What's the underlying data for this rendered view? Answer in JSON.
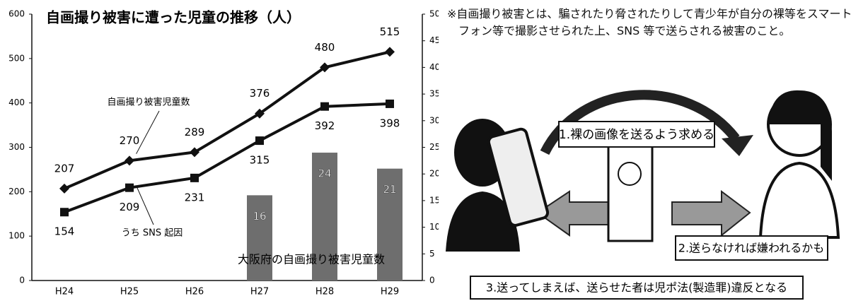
{
  "chart_data": {
    "type": "combo",
    "title": "自画撮り被害に遭った児童の推移（人）",
    "categories": [
      "H24",
      "H25",
      "H26",
      "H27",
      "H28",
      "H29"
    ],
    "series": [
      {
        "name": "自画撮り被害児童数",
        "type": "line",
        "marker": "diamond",
        "color": "#111111",
        "values": [
          207,
          270,
          289,
          376,
          480,
          515
        ]
      },
      {
        "name": "うち SNS 起因",
        "type": "line",
        "marker": "square",
        "color": "#111111",
        "values": [
          154,
          209,
          231,
          315,
          392,
          398
        ]
      },
      {
        "name": "大阪府の自画撮り被害児童数",
        "type": "bar",
        "axis": "y2",
        "color": "#6e6e6e",
        "values": [
          null,
          null,
          null,
          16,
          24,
          21
        ]
      }
    ],
    "ylim": [
      0,
      600
    ],
    "yticks": [
      0,
      100,
      200,
      300,
      400,
      500,
      600
    ],
    "y2lim": [
      0,
      50
    ],
    "y2ticks": [
      0,
      5,
      10,
      15,
      20,
      25,
      30,
      35,
      40,
      45,
      50
    ]
  },
  "note": "※自画撮り被害とは、騙されたり脅されたりして青少年が自分の裸等をスマートフォン等で撮影させられた上、SNS 等で送らされる被害のこと。",
  "illustration": {
    "steps": [
      "1.裸の画像を送るよう求める",
      "2.送らなければ嫌われるかも",
      "3.送ってしまえば、送らせた者は児ポ法(製造罪)違反となる"
    ]
  }
}
